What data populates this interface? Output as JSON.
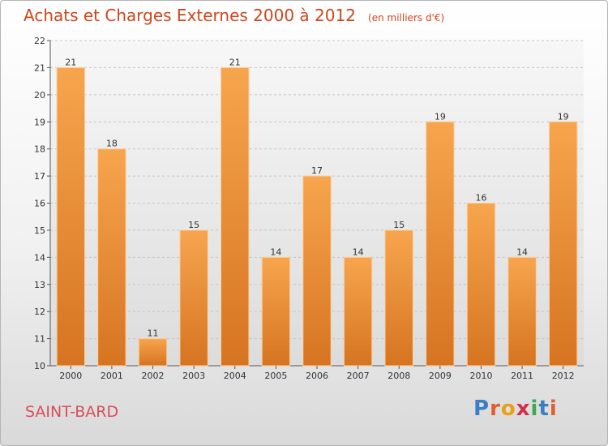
{
  "chart_data": {
    "type": "bar",
    "title": "Achats et Charges Externes 2000 à 2012",
    "subtitle": "(en milliers d'€)",
    "categories": [
      "2000",
      "2001",
      "2002",
      "2003",
      "2004",
      "2005",
      "2006",
      "2007",
      "2008",
      "2009",
      "2010",
      "2011",
      "2012"
    ],
    "values": [
      21,
      18,
      11,
      15,
      21,
      14,
      17,
      14,
      15,
      19,
      16,
      14,
      19
    ],
    "ylim": [
      10,
      22
    ],
    "yticks": [
      10,
      11,
      12,
      13,
      14,
      15,
      16,
      17,
      18,
      19,
      20,
      21,
      22
    ],
    "grid": true,
    "bar_color": "#f39c40"
  },
  "commune": "SAINT-BARD",
  "logo": {
    "text": "Proxiti",
    "letter_colors": [
      "#3a7fc6",
      "#e05f2a",
      "#e6a118",
      "#d2304a",
      "#3aaa4a",
      "#3a7fc6",
      "#e05f2a"
    ]
  }
}
